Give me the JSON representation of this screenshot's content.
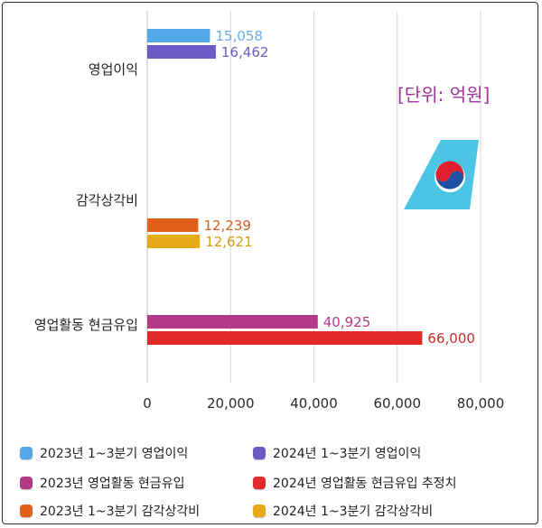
{
  "chart_data": {
    "type": "bar",
    "orientation": "horizontal",
    "unit_note": "[단위: 억원]",
    "xlim": [
      0,
      80000
    ],
    "xticks": [
      "0",
      "20,000",
      "40,000",
      "60,000",
      "80,000"
    ],
    "xtick_values": [
      0,
      20000,
      40000,
      60000,
      80000
    ],
    "categories": [
      "영업이익",
      "감각상각비",
      "영업활동 현금유입"
    ],
    "bars": [
      {
        "category": "영업이익",
        "series": "2023년 1~3분기 영업이익",
        "value": 15058,
        "label": "15,058",
        "color": "#55a8e8",
        "label_color": "#6aaee6"
      },
      {
        "category": "영업이익",
        "series": "2024년 1~3분기 영업이익",
        "value": 16462,
        "label": "16,462",
        "color": "#6b5bc6",
        "label_color": "#6b5bc6"
      },
      {
        "category": "감각상각비",
        "series": "2023년 1~3분기 감각상각비",
        "value": 12239,
        "label": "12,239",
        "color": "#e0601a",
        "label_color": "#d2601e"
      },
      {
        "category": "감각상각비",
        "series": "2024년 1~3분기 감각상각비",
        "value": 12621,
        "label": "12,621",
        "color": "#e6aa18",
        "label_color": "#d99a12"
      },
      {
        "category": "영업활동 현금유입",
        "series": "2023년 영업활동 현금유입",
        "value": 40925,
        "label": "40,925",
        "color": "#b23a86",
        "label_color": "#b23a86"
      },
      {
        "category": "영업활동 현금유입",
        "series": "2024년 영업활동 현금유입 추정치",
        "value": 66000,
        "label": "66,000",
        "color": "#e02a2a",
        "label_color": "#c42b2b"
      }
    ],
    "legend": [
      {
        "label": "2023년 1~3분기 영업이익",
        "color": "#55a8e8"
      },
      {
        "label": "2024년 1~3분기 영업이익",
        "color": "#6b5bc6"
      },
      {
        "label": "2023년 영업활동 현금유입",
        "color": "#b23a86"
      },
      {
        "label": "2024년 영업활동 현금유입 추정치",
        "color": "#e02a2a"
      },
      {
        "label": "2023년 1~3분기 감각상각비",
        "color": "#e0601a"
      },
      {
        "label": "2024년 1~3분기 감각상각비",
        "color": "#e6aa18"
      }
    ]
  },
  "logo": {
    "name": "airline-tail-logo-icon",
    "tail_color": "#4cc4e4"
  }
}
